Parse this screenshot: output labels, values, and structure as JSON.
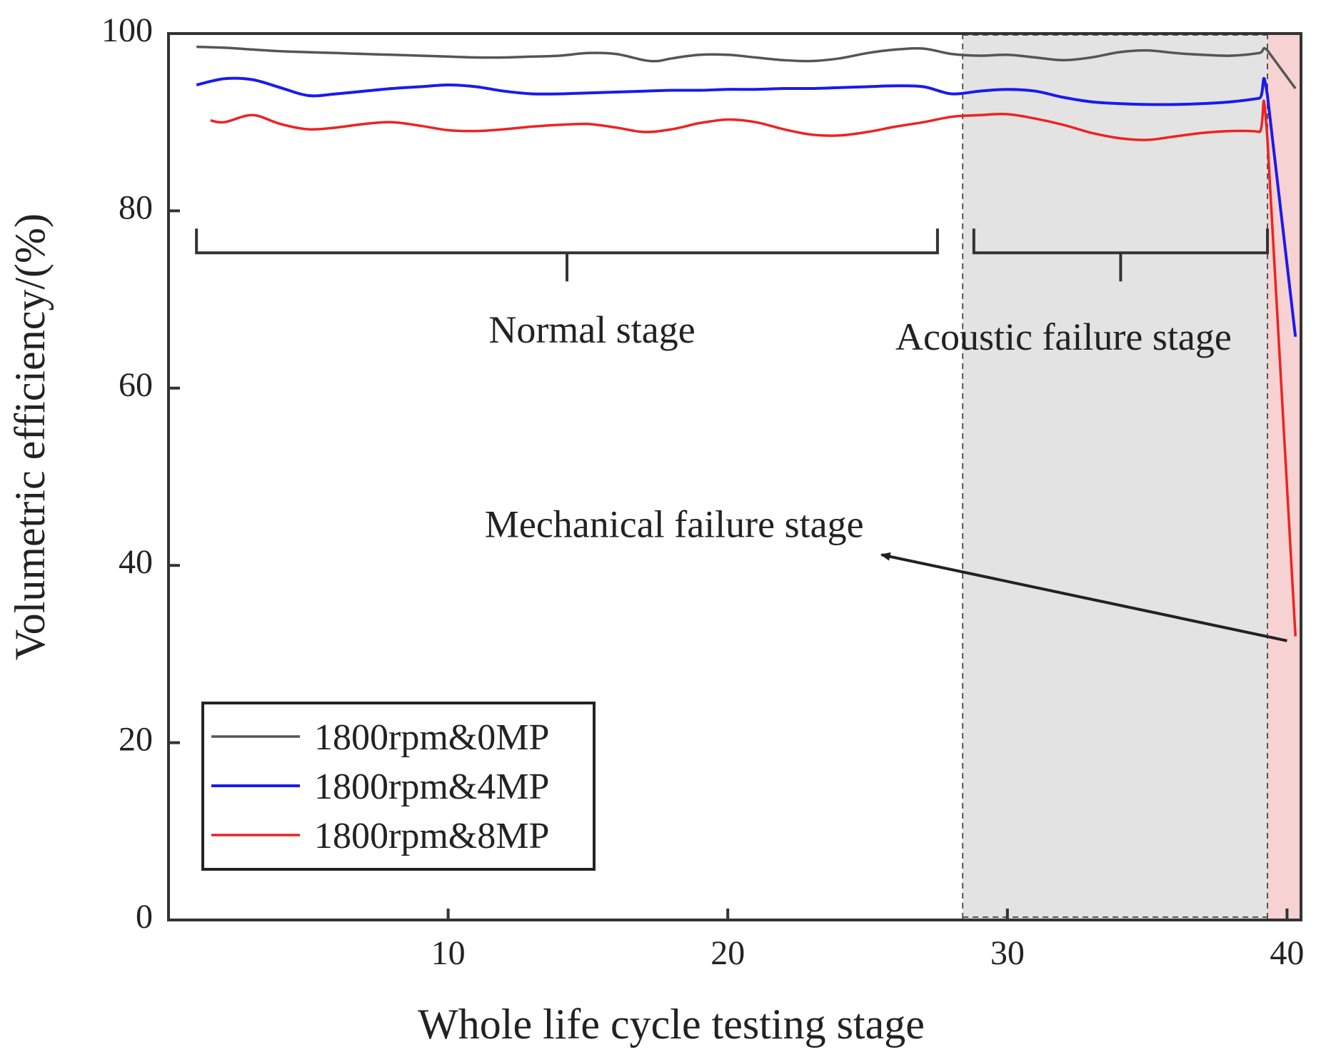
{
  "chart_data": {
    "type": "line",
    "title": "",
    "xlabel": "Whole life cycle testing stage",
    "ylabel": "Volumetric efficiency/(%)",
    "xlim": [
      0,
      40.5
    ],
    "ylim": [
      0,
      100
    ],
    "xticks": [
      10,
      20,
      30,
      40
    ],
    "yticks": [
      0,
      20,
      40,
      60,
      80,
      100
    ],
    "grid": false,
    "legend_position": "bottom-left",
    "colors": {
      "acoustic_region": "#e3e3e3",
      "mechanical_region": "#f7d2d2",
      "axis": "#333333",
      "annotation": "#222222"
    },
    "regions": [
      {
        "name": "acoustic-failure-region",
        "x_start": 28.4,
        "x_end": 39.3,
        "color": "#e3e3e3"
      },
      {
        "name": "mechanical-failure-region",
        "x_start": 39.3,
        "x_end": 40.5,
        "color": "#f7d2d2"
      }
    ],
    "series": [
      {
        "name": "1800rpm&0MP",
        "color": "#555555",
        "x": [
          1,
          2,
          3,
          4,
          5,
          6,
          7,
          8,
          9,
          10,
          11,
          12,
          13,
          14,
          15,
          16,
          17,
          17.5,
          18,
          19,
          20,
          21,
          22,
          23,
          24,
          25,
          26,
          27,
          28,
          29,
          30,
          31,
          32,
          33,
          34,
          35,
          36,
          37,
          38,
          39,
          39.3,
          40.3
        ],
        "values": [
          98.5,
          98.4,
          98.2,
          98.0,
          97.9,
          97.8,
          97.7,
          97.6,
          97.5,
          97.4,
          97.3,
          97.3,
          97.4,
          97.5,
          97.8,
          97.7,
          97.0,
          96.9,
          97.2,
          97.6,
          97.6,
          97.3,
          97.0,
          96.9,
          97.2,
          97.8,
          98.2,
          98.3,
          97.7,
          97.5,
          97.6,
          97.3,
          97.0,
          97.3,
          97.9,
          98.1,
          97.8,
          97.6,
          97.5,
          97.8,
          98.1,
          93.8
        ]
      },
      {
        "name": "1800rpm&4MP",
        "color": "#1a1aee",
        "x": [
          1,
          2,
          3,
          4,
          5,
          6,
          7,
          8,
          9,
          10,
          11,
          12,
          13,
          14,
          15,
          16,
          17,
          18,
          19,
          20,
          21,
          22,
          23,
          24,
          25,
          26,
          27,
          28,
          29,
          30,
          31,
          32,
          33,
          34,
          35,
          36,
          37,
          38,
          39,
          39.3,
          40.3
        ],
        "values": [
          94.2,
          94.9,
          94.8,
          93.9,
          93.0,
          93.2,
          93.5,
          93.8,
          94.0,
          94.2,
          94.0,
          93.5,
          93.2,
          93.2,
          93.3,
          93.4,
          93.5,
          93.6,
          93.6,
          93.7,
          93.7,
          93.8,
          93.8,
          93.9,
          94.0,
          94.1,
          94.0,
          93.2,
          93.5,
          93.7,
          93.5,
          92.8,
          92.3,
          92.1,
          92.0,
          92.0,
          92.1,
          92.3,
          92.7,
          93.0,
          65.8
        ]
      },
      {
        "name": "1800rpm&8MP",
        "color": "#ee2222",
        "x": [
          1.5,
          2,
          3,
          4,
          5,
          6,
          7,
          8,
          9,
          10,
          11,
          12,
          13,
          14,
          15,
          16,
          17,
          18,
          19,
          20,
          21,
          22,
          23,
          24,
          25,
          26,
          27,
          28,
          29,
          30,
          31,
          32,
          33,
          34,
          35,
          36,
          37,
          38,
          39,
          39.3,
          40.3
        ],
        "values": [
          90.2,
          90.0,
          90.8,
          89.8,
          89.2,
          89.4,
          89.8,
          90.0,
          89.6,
          89.1,
          89.0,
          89.2,
          89.5,
          89.7,
          89.8,
          89.4,
          88.9,
          89.2,
          89.9,
          90.3,
          90.0,
          89.2,
          88.6,
          88.5,
          88.9,
          89.5,
          90.0,
          90.6,
          90.8,
          90.9,
          90.4,
          89.7,
          88.8,
          88.2,
          88.0,
          88.4,
          88.8,
          89.0,
          88.9,
          88.0,
          32.0
        ]
      }
    ],
    "annotations": {
      "normal_stage": {
        "label": "Normal stage",
        "x_start": 1,
        "x_end": 27.5,
        "y": 78
      },
      "acoustic_stage": {
        "label": "Acoustic failure stage",
        "x_start": 28.8,
        "x_end": 39.3,
        "y": 78
      },
      "mechanical_stage": {
        "label": "Mechanical failure stage",
        "arrow_from": [
          40.0,
          31.5
        ],
        "arrow_to": [
          25.5,
          41.2
        ]
      }
    }
  }
}
